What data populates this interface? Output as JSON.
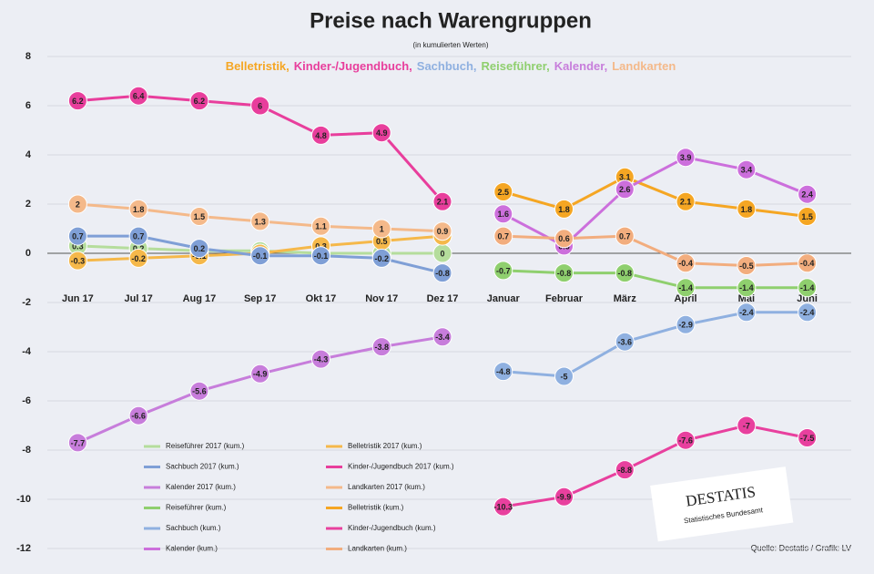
{
  "chart_data": {
    "type": "line",
    "title": "Preise nach Warengruppen",
    "subtitle": "(in kumulierten Werten)",
    "highlight": [
      {
        "text": "Belletristik,",
        "color": "#f5a623"
      },
      {
        "text": "Kinder-/Jugendbuch,",
        "color": "#e83e9c"
      },
      {
        "text": "Sachbuch,",
        "color": "#8fb0e0"
      },
      {
        "text": "Reiseführer,",
        "color": "#8fcf6e"
      },
      {
        "text": "Kalender,",
        "color": "#c77ddb"
      },
      {
        "text": "Landkarten",
        "color": "#f4b98a"
      }
    ],
    "source": "Quelle: Destatis / Grafik: LV",
    "logo": "DESTATIS",
    "logo_sub": "Statistisches Bundesamt",
    "categories": [
      "Jun 17",
      "Jul 17",
      "Aug 17",
      "Sep 17",
      "Okt 17",
      "Nov 17",
      "Dez 17",
      "Januar",
      "Februar",
      "März",
      "April",
      "Mai",
      "Juni"
    ],
    "ylim": [
      -12,
      8
    ],
    "yticks": [
      8,
      6,
      4,
      2,
      0,
      -2,
      -4,
      -6,
      -8,
      -10,
      -12
    ],
    "grid": true,
    "series": [
      {
        "name": "Reiseführer 2017 (kum.)",
        "color": "#b5dd9c",
        "values": [
          0.3,
          0.2,
          0.1,
          0.1,
          0,
          0,
          0,
          null,
          null,
          null,
          null,
          null,
          null
        ]
      },
      {
        "name": "Belletristik 2017 (kum.)",
        "color": "#f5b84a",
        "values": [
          -0.3,
          -0.2,
          -0.1,
          0,
          0.3,
          0.5,
          0.7,
          null,
          null,
          null,
          null,
          null,
          null
        ]
      },
      {
        "name": "Sachbuch 2017 (kum.)",
        "color": "#7f9fd6",
        "values": [
          0.7,
          0.7,
          0.2,
          -0.1,
          -0.1,
          -0.2,
          -0.8,
          null,
          null,
          null,
          null,
          null,
          null
        ]
      },
      {
        "name": "Kinder-/Jugendbuch 2017 (kum.)",
        "color": "#e83e9c",
        "values": [
          6.2,
          6.4,
          6.2,
          6.0,
          4.8,
          4.9,
          2.1,
          null,
          null,
          null,
          null,
          null,
          null
        ]
      },
      {
        "name": "Kalender 2017 (kum.)",
        "color": "#c77ddb",
        "values": [
          -7.7,
          -6.6,
          -5.6,
          -4.9,
          -4.3,
          -3.8,
          -3.4,
          null,
          null,
          null,
          null,
          null,
          null
        ]
      },
      {
        "name": "Landkarten 2017 (kum.)",
        "color": "#f4b98a",
        "values": [
          2.0,
          1.8,
          1.5,
          1.3,
          1.1,
          1.0,
          0.9,
          null,
          null,
          null,
          null,
          null,
          null
        ]
      },
      {
        "name": "Reiseführer (kum.)",
        "color": "#8fcf6e",
        "values": [
          null,
          null,
          null,
          null,
          null,
          null,
          null,
          -0.7,
          -0.8,
          -0.8,
          -1.4,
          -1.4,
          -1.4
        ]
      },
      {
        "name": "Belletristik (kum.)",
        "color": "#f5a623",
        "values": [
          null,
          null,
          null,
          null,
          null,
          null,
          null,
          2.5,
          1.8,
          3.1,
          2.1,
          1.8,
          1.5
        ]
      },
      {
        "name": "Sachbuch (kum.)",
        "color": "#8fb0e0",
        "values": [
          null,
          null,
          null,
          null,
          null,
          null,
          null,
          -4.8,
          -5.0,
          -3.6,
          -2.9,
          -2.4,
          -2.4
        ]
      },
      {
        "name": "Kinder-/Jugendbuch (kum.)",
        "color": "#e8409e",
        "values": [
          null,
          null,
          null,
          null,
          null,
          null,
          null,
          -10.3,
          -9.9,
          -8.8,
          -7.6,
          -7.0,
          -7.5
        ]
      },
      {
        "name": "Kalender (kum.)",
        "color": "#cc6fdc",
        "values": [
          null,
          null,
          null,
          null,
          null,
          null,
          null,
          1.6,
          0.3,
          2.6,
          3.9,
          3.4,
          2.4
        ]
      },
      {
        "name": "Landkarten (kum.)",
        "color": "#f2ad7e",
        "values": [
          null,
          null,
          null,
          null,
          null,
          null,
          null,
          0.7,
          0.6,
          0.7,
          -0.4,
          -0.5,
          -0.4
        ]
      }
    ]
  }
}
